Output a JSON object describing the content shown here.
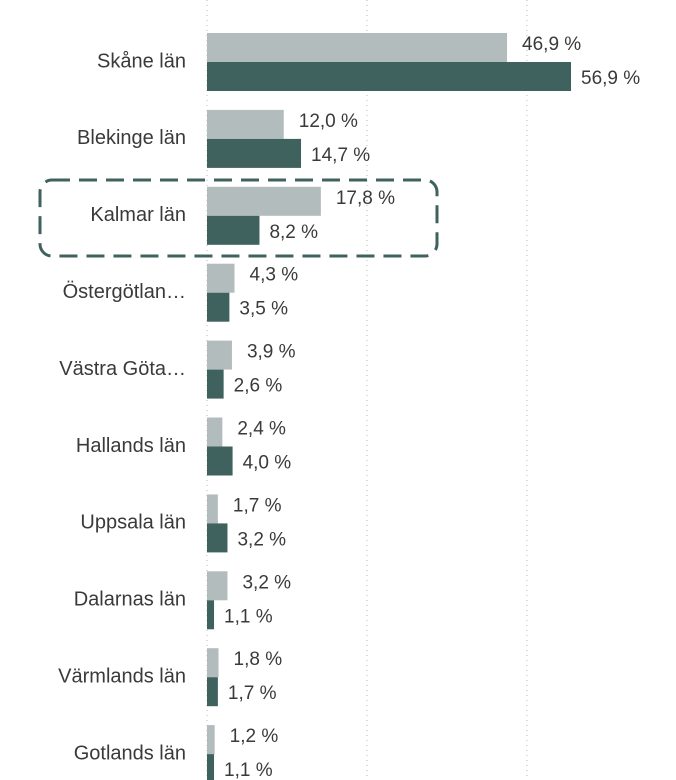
{
  "chart_data": {
    "type": "bar",
    "orientation": "horizontal",
    "categories": [
      "Skåne län",
      "Blekinge län",
      "Kalmar län",
      "Östergötlan…",
      "Västra Göta…",
      "Hallands län",
      "Uppsala län",
      "Dalarnas län",
      "Värmlands län",
      "Gotlands län"
    ],
    "series": [
      {
        "color": "#b3bcbd",
        "values": [
          46.9,
          12.0,
          17.8,
          4.3,
          3.9,
          2.4,
          1.7,
          3.2,
          1.8,
          1.2
        ],
        "value_labels": [
          "46,9 %",
          "12,0 %",
          "17,8 %",
          "4,3 %",
          "3,9 %",
          "2,4 %",
          "1,7 %",
          "3,2 %",
          "1,8 %",
          "1,2 %"
        ]
      },
      {
        "color": "#3f625f",
        "values": [
          56.9,
          14.7,
          8.2,
          3.5,
          2.6,
          4.0,
          3.2,
          1.1,
          1.7,
          1.1
        ],
        "value_labels": [
          "56,9 %",
          "14,7 %",
          "8,2 %",
          "3,5 %",
          "2,6 %",
          "4,0 %",
          "3,2 %",
          "1,1 %",
          "1,7 %",
          "1,1 %"
        ]
      }
    ],
    "xlim": [
      0,
      73
    ],
    "xticks": [
      0,
      25,
      50
    ],
    "grid": true
  }
}
